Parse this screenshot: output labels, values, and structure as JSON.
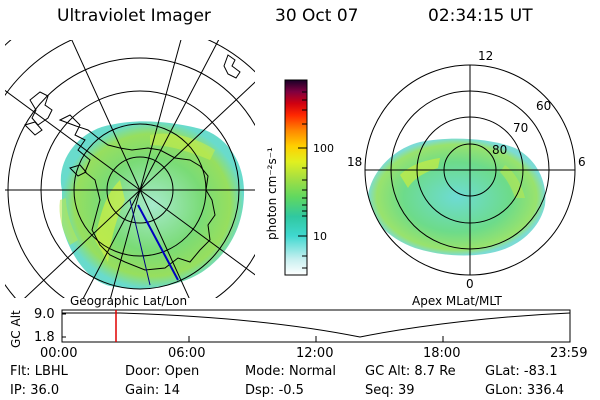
{
  "header": {
    "title": "Ultraviolet Imager",
    "date": "30 Oct 07",
    "time": "02:34:15 UT"
  },
  "left_panel": {
    "label": "Geographic Lat/Lon"
  },
  "right_panel": {
    "label": "Apex MLat/MLT",
    "lat_labels": [
      "60",
      "70",
      "80"
    ],
    "mlt_labels": [
      "12",
      "18",
      "6",
      "0"
    ]
  },
  "colorbar": {
    "unit_label": "photon cm⁻²s⁻¹",
    "tick_labels": [
      "100",
      "10"
    ],
    "scale": "log",
    "colors": [
      "#ffffff",
      "#c8f0f0",
      "#40d8d0",
      "#30c8b0",
      "#60d860",
      "#a0e040",
      "#d8f020",
      "#ffe000",
      "#ffa000",
      "#ff4000",
      "#e00000",
      "#a00020",
      "#600040",
      "#200030"
    ]
  },
  "timeline": {
    "axis_label": "GC Alt",
    "y_labels": [
      "9.0",
      "1.8"
    ],
    "x_labels": [
      "00:00",
      "06:00",
      "12:00",
      "18:00",
      "23:59"
    ],
    "cursor_time": "02:34"
  },
  "info": {
    "row1": [
      {
        "label": "Flt:",
        "value": "LBHL"
      },
      {
        "label": "Door:",
        "value": "Open"
      },
      {
        "label": "Mode:",
        "value": "Normal"
      },
      {
        "label": "GC Alt:",
        "value": "8.7 Re"
      },
      {
        "label": "GLat:",
        "value": "-83.1"
      }
    ],
    "row2": [
      {
        "label": "IP:",
        "value": "36.0"
      },
      {
        "label": "Gain:",
        "value": "14"
      },
      {
        "label": "Dsp:",
        "value": "-0.5"
      },
      {
        "label": "Seq:",
        "value": "39"
      },
      {
        "label": "GLon:",
        "value": "336.4"
      }
    ]
  }
}
